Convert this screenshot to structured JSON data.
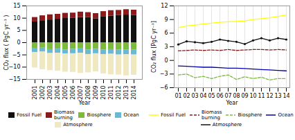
{
  "chart_data": [
    {
      "type": "bar",
      "stacked": true,
      "xlabel": "Year",
      "ylabel": "CO₂ flux ( PgC yr⁻¹ )",
      "categories": [
        "2001",
        "2002",
        "2003",
        "2004",
        "2005",
        "2006",
        "2007",
        "2008",
        "2009",
        "2010",
        "2011",
        "2012",
        "2013",
        "2014"
      ],
      "series": [
        {
          "name": "Fossil Fuel",
          "color": "#111111",
          "values": [
            8.5,
            9.0,
            9.3,
            9.6,
            9.9,
            10.1,
            10.3,
            10.3,
            9.8,
            10.5,
            10.9,
            11.1,
            11.3,
            11.2
          ]
        },
        {
          "name": "Biomass\nburning",
          "color": "#8B1A1A",
          "values": [
            1.8,
            2.0,
            2.1,
            2.0,
            2.1,
            2.0,
            2.2,
            2.0,
            2.1,
            2.2,
            2.2,
            2.1,
            2.2,
            2.1
          ]
        },
        {
          "name": "Biosphere",
          "color": "#7CBA3C",
          "values": [
            -2.5,
            -2.2,
            -2.8,
            -2.6,
            -2.9,
            -2.7,
            -2.5,
            -3.0,
            -2.7,
            -2.9,
            -2.8,
            -3.0,
            -2.9,
            -2.9
          ]
        },
        {
          "name": "Ocean",
          "color": "#6BB8D4",
          "values": [
            -1.5,
            -1.6,
            -1.6,
            -1.7,
            -1.7,
            -1.8,
            -1.8,
            -1.8,
            -1.8,
            -1.9,
            -1.9,
            -2.0,
            -2.0,
            -2.1
          ]
        },
        {
          "name": "Atmosphere",
          "color": "#F0E8C0",
          "values": [
            -6.3,
            -7.2,
            -7.0,
            -7.3,
            -7.4,
            -7.6,
            -8.2,
            -7.5,
            -7.4,
            -7.9,
            -8.4,
            -8.2,
            -8.6,
            -8.3
          ]
        }
      ],
      "ylim": [
        -15,
        15
      ],
      "yticks": [
        -15,
        -10,
        -5,
        0,
        5,
        10,
        15
      ],
      "grid": false,
      "legend": "bottom"
    },
    {
      "type": "line",
      "xlabel": "Year",
      "ylabel": "CO₂ flux [PgC yr⁻¹]",
      "categories": [
        "01",
        "02",
        "03",
        "04",
        "05",
        "06",
        "07",
        "08",
        "09",
        "10",
        "11",
        "12",
        "13",
        "14"
      ],
      "series": [
        {
          "name": "Fossil Fuel",
          "color": "#FFFF00",
          "line_style": "solid",
          "values": [
            7.2,
            7.6,
            7.8,
            8.0,
            8.2,
            8.4,
            8.5,
            8.6,
            8.7,
            9.0,
            9.2,
            9.4,
            9.7,
            10.0
          ]
        },
        {
          "name": "Biomass\nburning",
          "color": "#8B1A1A",
          "line_style": "dashed",
          "values": [
            2.1,
            2.2,
            2.3,
            2.2,
            2.3,
            2.2,
            2.4,
            2.2,
            2.3,
            2.4,
            2.4,
            2.3,
            2.4,
            2.3
          ]
        },
        {
          "name": "Biosphere",
          "color": "#7CBA3C",
          "line_style": "dashed",
          "values": [
            -3.2,
            -3.0,
            -3.8,
            -3.5,
            -4.0,
            -3.5,
            -3.2,
            -4.2,
            -3.6,
            -4.0,
            -3.7,
            -4.3,
            -4.0,
            -4.0
          ]
        },
        {
          "name": "Ocean",
          "color": "#0000AA",
          "line_style": "solid",
          "values": [
            -1.2,
            -1.3,
            -1.4,
            -1.5,
            -1.5,
            -1.6,
            -1.7,
            -1.7,
            -1.8,
            -1.9,
            -2.0,
            -2.1,
            -2.2,
            -2.3
          ]
        },
        {
          "name": "Atmosphere",
          "color": "#111111",
          "line_style": "solid",
          "marker": "circle",
          "values": [
            3.5,
            4.2,
            4.0,
            3.8,
            4.1,
            4.6,
            4.3,
            4.1,
            3.6,
            4.4,
            4.9,
            4.4,
            4.9,
            4.6
          ]
        }
      ],
      "ylim": [
        -6,
        12
      ],
      "yticks": [
        -6,
        -3,
        0,
        3,
        6,
        9,
        12
      ],
      "grid": "x",
      "legend": "bottom"
    }
  ]
}
